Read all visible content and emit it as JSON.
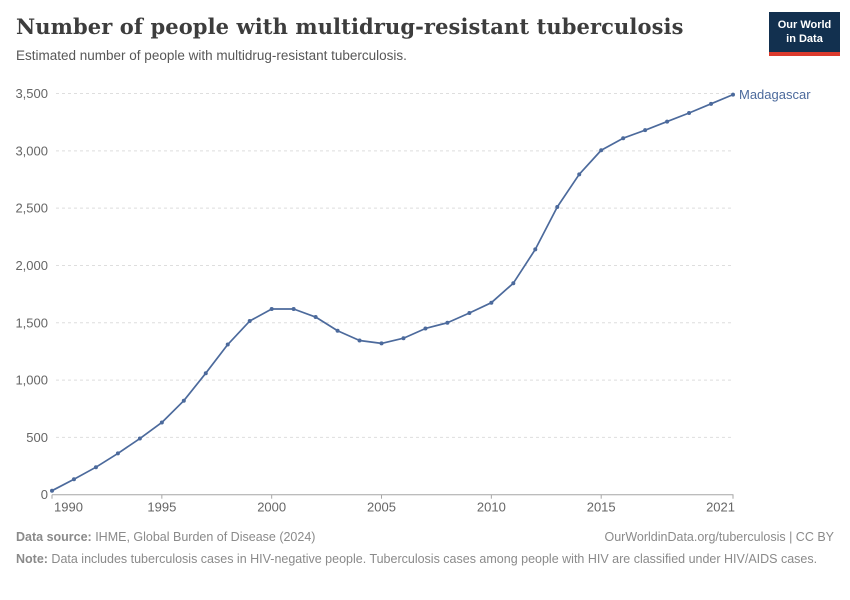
{
  "header": {
    "title": "Number of people with multidrug-resistant tuberculosis",
    "subtitle": "Estimated number of people with multidrug-resistant tuberculosis.",
    "logo": {
      "line1": "Our World",
      "line2": "in Data"
    }
  },
  "chart_data": {
    "type": "line",
    "title": "Number of people with multidrug-resistant tuberculosis",
    "entity_label": "Madagascar",
    "x": [
      1990,
      1991,
      1992,
      1993,
      1994,
      1995,
      1996,
      1997,
      1998,
      1999,
      2000,
      2001,
      2002,
      2003,
      2004,
      2005,
      2006,
      2007,
      2008,
      2009,
      2010,
      2011,
      2012,
      2013,
      2014,
      2015,
      2016,
      2017,
      2018,
      2019,
      2020,
      2021
    ],
    "series": [
      {
        "name": "Madagascar",
        "color": "#4c6a9c",
        "values": [
          35,
          135,
          240,
          360,
          490,
          630,
          820,
          1060,
          1310,
          1515,
          1620,
          1620,
          1550,
          1430,
          1345,
          1320,
          1365,
          1450,
          1500,
          1585,
          1675,
          1845,
          2140,
          2510,
          2795,
          3005,
          3110,
          3180,
          3255,
          3330,
          3410,
          3490
        ]
      }
    ],
    "xlim": [
      1990,
      2021
    ],
    "ylim": [
      0,
      3500
    ],
    "xticks": [
      1990,
      1995,
      2000,
      2005,
      2010,
      2015,
      2021
    ],
    "yticks": [
      0,
      500,
      1000,
      1500,
      2000,
      2500,
      3000,
      3500
    ],
    "grid": "horizontal-dashed",
    "legend": "line-end-label"
  },
  "footer": {
    "source_label": "Data source:",
    "source_value": " IHME, Global Burden of Disease (2024)",
    "attribution": "OurWorldinData.org/tuberculosis | CC BY",
    "note_label": "Note:",
    "note_value": " Data includes tuberculosis cases in HIV-negative people. Tuberculosis cases among people with HIV are classified under HIV/AIDS cases."
  },
  "colors": {
    "series": "#4c6a9c",
    "gridline": "#dedede",
    "axis": "#a6a6a6",
    "tick_text": "#666666",
    "logo_bg": "#12304f",
    "logo_accent": "#dc3a2d"
  }
}
